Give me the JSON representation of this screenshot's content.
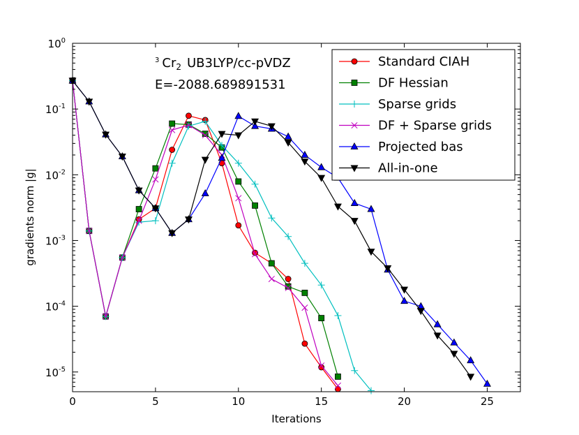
{
  "chart_data": {
    "type": "line",
    "yscale": "log",
    "title": "",
    "xlabel": "Iterations",
    "ylabel": "gradients norm |g|",
    "xlim": [
      0,
      27
    ],
    "ylim_exp": [
      -5.3,
      0
    ],
    "xticks": [
      "0",
      "5",
      "10",
      "15",
      "20",
      "25"
    ],
    "yticks": [
      {
        "base": "10",
        "exp": "0"
      },
      {
        "base": "10",
        "exp": "-1"
      },
      {
        "base": "10",
        "exp": "-2"
      },
      {
        "base": "10",
        "exp": "-3"
      },
      {
        "base": "10",
        "exp": "-4"
      },
      {
        "base": "10",
        "exp": "-5"
      }
    ],
    "annotation": {
      "line1_sup": "3",
      "line1_main": "Cr",
      "line1_sub": "2",
      "line1_rest": "UB3LYP/cc-pVDZ",
      "line2": "E=-2088.689891531"
    },
    "legend_position": "top-right",
    "series": [
      {
        "name": "Standard CIAH",
        "color": "#ff0000",
        "marker": "circle",
        "fill": "#ff0000",
        "x": [
          0,
          1,
          2,
          3,
          4,
          5,
          6,
          7,
          8,
          9,
          10,
          11,
          12,
          13,
          14,
          15,
          16
        ],
        "y": [
          0.27,
          0.0014,
          7e-05,
          0.00055,
          0.0021,
          0.0031,
          0.024,
          0.079,
          0.068,
          0.015,
          0.0017,
          0.00065,
          0.00045,
          0.00026,
          2.7e-05,
          1.18e-05,
          5.5e-06
        ]
      },
      {
        "name": "DF Hessian",
        "color": "#008000",
        "marker": "square",
        "fill": "#008000",
        "x": [
          0,
          1,
          2,
          3,
          4,
          5,
          6,
          7,
          8,
          9,
          10,
          11,
          12,
          13,
          14,
          15,
          16
        ],
        "y": [
          0.27,
          0.0014,
          7e-05,
          0.00055,
          0.003,
          0.0125,
          0.06,
          0.058,
          0.042,
          0.026,
          0.0079,
          0.0034,
          0.00045,
          0.0002,
          0.00016,
          6.6e-05,
          8.5e-06
        ]
      },
      {
        "name": "Sparse grids",
        "color": "#00bfbf",
        "marker": "plus",
        "fill": "none",
        "x": [
          0,
          1,
          2,
          3,
          4,
          5,
          6,
          7,
          8,
          9,
          10,
          11,
          12,
          13,
          14,
          15,
          16,
          17,
          18
        ],
        "y": [
          0.27,
          0.0014,
          7e-05,
          0.00055,
          0.0019,
          0.002,
          0.015,
          0.055,
          0.065,
          0.028,
          0.015,
          0.0072,
          0.0022,
          0.00115,
          0.00045,
          0.00021,
          7.2e-05,
          1.05e-05,
          5.2e-06
        ]
      },
      {
        "name": "DF + Sparse grids",
        "color": "#bf00bf",
        "marker": "x",
        "fill": "none",
        "x": [
          0,
          1,
          2,
          3,
          4,
          5,
          6,
          7,
          8,
          9,
          10,
          11,
          12,
          13,
          14,
          15,
          16
        ],
        "y": [
          0.27,
          0.0014,
          7e-05,
          0.00055,
          0.002,
          0.0085,
          0.048,
          0.057,
          0.04,
          0.02,
          0.0044,
          0.00062,
          0.00026,
          0.00019,
          9.5e-05,
          1.25e-05,
          6.2e-06
        ]
      },
      {
        "name": "Projected bas",
        "color": "#0000ff",
        "marker": "triangle-up",
        "fill": "#0000ff",
        "x": [
          0,
          1,
          2,
          3,
          4,
          5,
          6,
          7,
          8,
          9,
          10,
          11,
          12,
          13,
          14,
          15,
          16,
          17,
          18,
          19,
          20,
          21,
          22,
          23,
          24,
          25
        ],
        "y": [
          0.27,
          0.13,
          0.041,
          0.019,
          0.0058,
          0.0031,
          0.0013,
          0.0021,
          0.0052,
          0.018,
          0.078,
          0.055,
          0.05,
          0.038,
          0.02,
          0.013,
          0.009,
          0.0037,
          0.003,
          0.00036,
          0.00012,
          0.0001,
          5.3e-05,
          2.8e-05,
          1.5e-05,
          6.6e-06
        ]
      },
      {
        "name": "All-in-one",
        "color": "#000000",
        "marker": "triangle-down",
        "fill": "#000000",
        "x": [
          0,
          1,
          2,
          3,
          4,
          5,
          6,
          7,
          8,
          9,
          10,
          11,
          12,
          13,
          14,
          15,
          16,
          17,
          18,
          19,
          20,
          21,
          22,
          23,
          24
        ],
        "y": [
          0.27,
          0.13,
          0.041,
          0.019,
          0.0058,
          0.0031,
          0.0013,
          0.0021,
          0.017,
          0.042,
          0.04,
          0.065,
          0.055,
          0.031,
          0.016,
          0.009,
          0.0033,
          0.002,
          0.00068,
          0.00038,
          0.00018,
          8.5e-05,
          3.6e-05,
          1.9e-05,
          8.5e-06
        ]
      }
    ]
  }
}
